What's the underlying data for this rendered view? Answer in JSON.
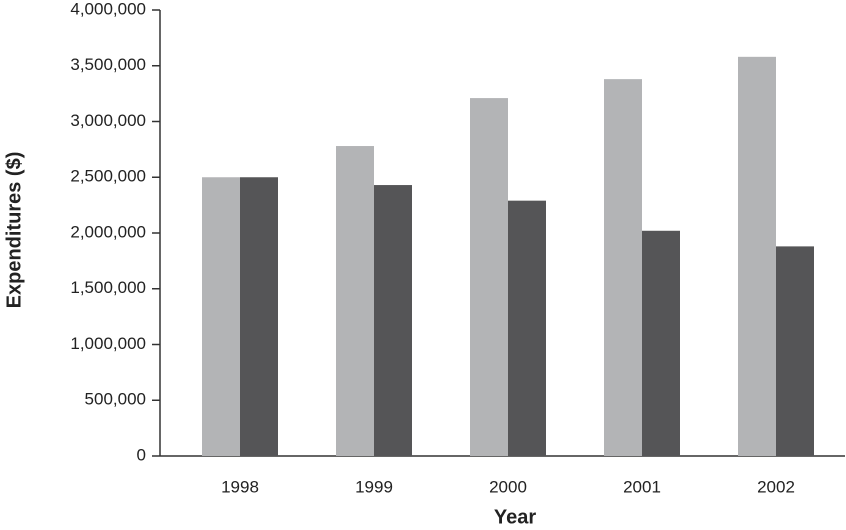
{
  "chart_data": {
    "type": "bar",
    "x_label": "Year",
    "y_label": "Expenditures ($)",
    "categories": [
      "1998",
      "1999",
      "2000",
      "2001",
      "2002"
    ],
    "series": [
      {
        "color": "#b3b4b6",
        "values": [
          2500000,
          2780000,
          3210000,
          3380000,
          3580000
        ]
      },
      {
        "color": "#555557",
        "values": [
          2500000,
          2430000,
          2290000,
          2020000,
          1880000
        ]
      }
    ],
    "ylim": [
      0,
      4000000
    ],
    "yticks": [
      0,
      {
        "value": 500000,
        "label": "500,000"
      },
      {
        "value": 1000000,
        "label": "1,000,000"
      },
      {
        "value": 1500000,
        "label": "1,500,000"
      },
      {
        "value": 2000000,
        "label": "2,000,000"
      },
      {
        "value": 2500000,
        "label": "2,500,000"
      },
      {
        "value": 3000000,
        "label": "3,000,000"
      },
      {
        "value": 3500000,
        "label": "3,500,000"
      },
      {
        "value": 4000000,
        "label": "4,000,000"
      }
    ]
  }
}
